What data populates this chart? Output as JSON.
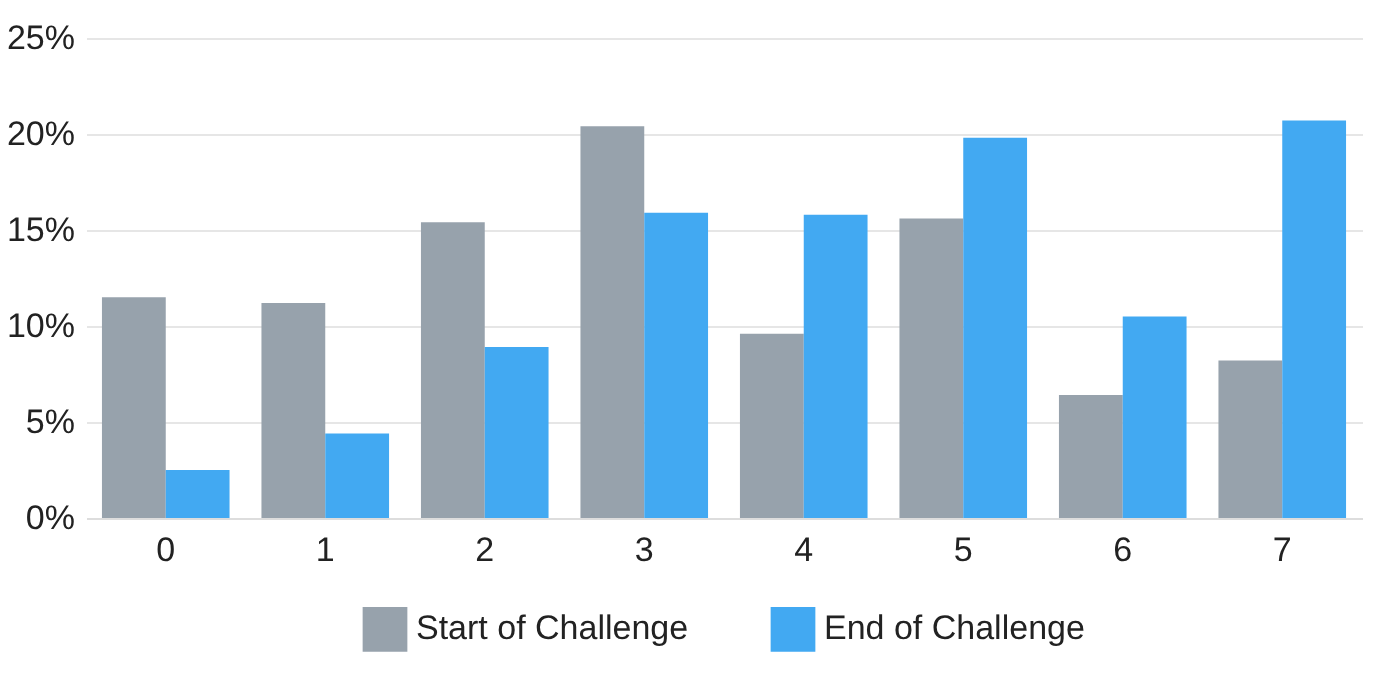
{
  "chart_data": {
    "type": "bar",
    "categories": [
      "0",
      "1",
      "2",
      "3",
      "4",
      "5",
      "6",
      "7"
    ],
    "series": [
      {
        "name": "Start of Challenge",
        "color": "#97a2ac",
        "values": [
          11.5,
          11.2,
          15.4,
          20.4,
          9.6,
          15.6,
          6.4,
          8.2
        ]
      },
      {
        "name": "End of Challenge",
        "color": "#42a9f2",
        "values": [
          2.5,
          4.4,
          8.9,
          15.9,
          15.8,
          19.8,
          10.5,
          20.7
        ]
      }
    ],
    "ylim": [
      0,
      25
    ],
    "yticks": [
      {
        "value": 0,
        "label": "0%"
      },
      {
        "value": 5,
        "label": "5%"
      },
      {
        "value": 10,
        "label": "10%"
      },
      {
        "value": 15,
        "label": "15%"
      },
      {
        "value": 20,
        "label": "20%"
      },
      {
        "value": 25,
        "label": "25%"
      }
    ],
    "grid": "y",
    "legend": "bottom"
  }
}
